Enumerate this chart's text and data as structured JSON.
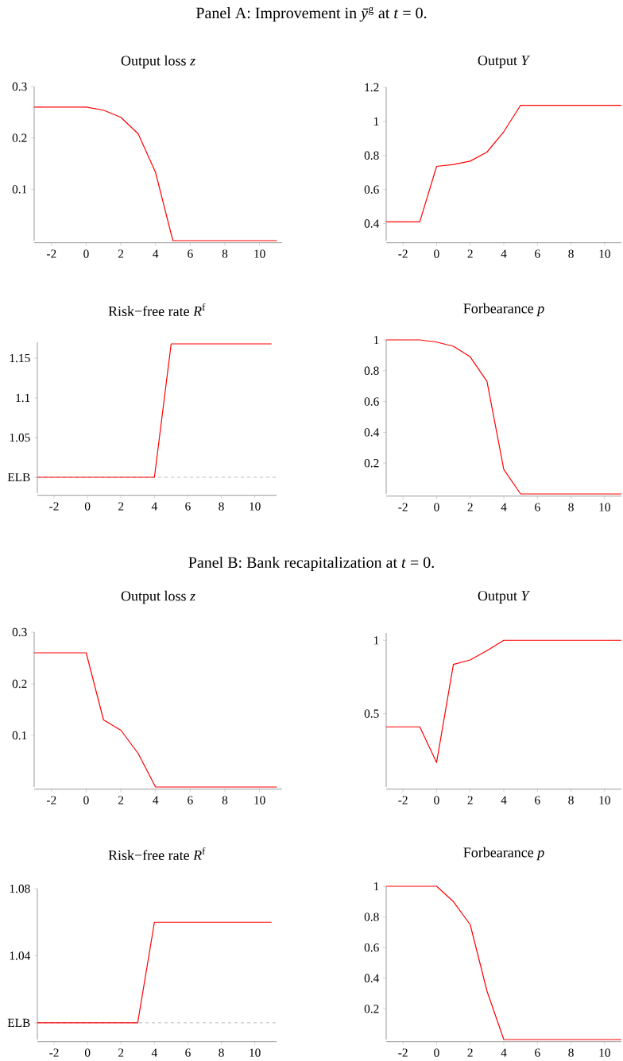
{
  "chart_data": [
    {
      "type": "line",
      "title": "Output loss *z*",
      "annotations": [
        "Panel A: Improvement in *ȳ*$^{g}$ at *t* = 0."
      ],
      "x": [
        -3,
        -2,
        -1,
        0,
        1,
        2,
        3,
        4,
        5,
        6,
        7,
        8,
        9,
        10,
        11
      ],
      "values": [
        0.26,
        0.26,
        0.26,
        0.26,
        0.254,
        0.24,
        0.208,
        0.133,
        0,
        0,
        0,
        0,
        0,
        0,
        0
      ],
      "color": "#ff0000",
      "xlim": [
        -3,
        11.3
      ],
      "xticks": [
        -2,
        0,
        2,
        4,
        6,
        8,
        10
      ],
      "ylim": [
        0,
        0.3
      ],
      "yticks": [
        0.1,
        0.2,
        0.3
      ]
    },
    {
      "type": "line",
      "title": "Output *Y*",
      "x": [
        -3,
        -2,
        -1,
        0,
        1,
        2,
        3,
        4,
        5,
        6,
        7,
        8,
        9,
        10,
        11
      ],
      "values": [
        0.41,
        0.41,
        0.41,
        0.736,
        0.747,
        0.767,
        0.82,
        0.94,
        1.095,
        1.095,
        1.095,
        1.095,
        1.095,
        1.095,
        1.095
      ],
      "color": "#ff0000",
      "xlim": [
        -3,
        11
      ],
      "xticks": [
        -2,
        0,
        2,
        4,
        6,
        8,
        10
      ],
      "ylim": [
        0.3,
        1.2
      ],
      "yticks": [
        0.4,
        0.6,
        0.8,
        1,
        1.2
      ]
    },
    {
      "type": "line",
      "title": "Risk−free rate *R*$^{f}$",
      "x": [
        -3,
        -2,
        -1,
        0,
        1,
        2,
        3,
        4,
        5,
        6,
        7,
        8,
        9,
        10,
        11
      ],
      "values": [
        1,
        1,
        1,
        1,
        1,
        1,
        1,
        1,
        1.168,
        1.168,
        1.168,
        1.168,
        1.168,
        1.168,
        1.168
      ],
      "color": "#ff0000",
      "xlim": [
        -3,
        11.3
      ],
      "xticks": [
        -2,
        0,
        2,
        4,
        6,
        8,
        10
      ],
      "ylim": [
        0.98,
        1.17
      ],
      "yticks": [
        {
          "value": 1,
          "label": "ELB"
        },
        1.05,
        1.1,
        1.15
      ],
      "ref_lines": [
        {
          "axis": "y",
          "value": 1,
          "color": "#808080",
          "line_style": "dashed"
        }
      ]
    },
    {
      "type": "line",
      "title": "Forbearance *p*",
      "x": [
        -3,
        -2,
        -1,
        0,
        1,
        2,
        3,
        4,
        5,
        6,
        7,
        8,
        9,
        10,
        11
      ],
      "values": [
        1,
        1,
        1,
        0.986,
        0.959,
        0.89,
        0.73,
        0.159,
        0,
        0,
        0,
        0,
        0,
        0,
        0
      ],
      "color": "#ff0000",
      "xlim": [
        -3,
        11
      ],
      "xticks": [
        -2,
        0,
        2,
        4,
        6,
        8,
        10
      ],
      "ylim": [
        0,
        1
      ],
      "yticks": [
        0.2,
        0.4,
        0.6,
        0.8,
        1
      ]
    },
    {
      "type": "line",
      "title": "Output loss *z*",
      "annotations": [
        "Panel B: Bank recapitalization at *t* = 0."
      ],
      "x": [
        -3,
        -2,
        -1,
        0,
        1,
        2,
        3,
        4,
        5,
        6,
        7,
        8,
        9,
        10,
        11
      ],
      "values": [
        0.26,
        0.26,
        0.26,
        0.26,
        0.13,
        0.11,
        0.065,
        0,
        0,
        0,
        0,
        0,
        0,
        0,
        0
      ],
      "color": "#ff0000",
      "xlim": [
        -3,
        11.3
      ],
      "xticks": [
        -2,
        0,
        2,
        4,
        6,
        8,
        10
      ],
      "ylim": [
        0,
        0.3
      ],
      "yticks": [
        0.1,
        0.2,
        0.3
      ]
    },
    {
      "type": "line",
      "title": "Output *Y*",
      "x": [
        -3,
        -2,
        -1,
        0,
        1,
        2,
        3,
        4,
        5,
        6,
        7,
        8,
        9,
        10,
        11
      ],
      "values": [
        0.41,
        0.41,
        0.41,
        0.167,
        0.836,
        0.866,
        0.93,
        1,
        1,
        1,
        1,
        1,
        1,
        1,
        1
      ],
      "color": "#ff0000",
      "xlim": [
        -3,
        11
      ],
      "xticks": [
        -2,
        0,
        2,
        4,
        6,
        8,
        10
      ],
      "ylim": [
        0,
        1.05
      ],
      "yticks": [
        0.5,
        1
      ]
    },
    {
      "type": "line",
      "title": "Risk−free rate *R*$^{f}$",
      "x": [
        -3,
        -2,
        -1,
        0,
        1,
        2,
        3,
        4,
        5,
        6,
        7,
        8,
        9,
        10,
        11
      ],
      "values": [
        1,
        1,
        1,
        1,
        1,
        1,
        1,
        1.06,
        1.06,
        1.06,
        1.06,
        1.06,
        1.06,
        1.06,
        1.06
      ],
      "color": "#ff0000",
      "xlim": [
        -3,
        11.3
      ],
      "xticks": [
        -2,
        0,
        2,
        4,
        6,
        8,
        10
      ],
      "ylim": [
        0.99,
        1.08
      ],
      "yticks": [
        {
          "value": 1,
          "label": "ELB"
        },
        1.04,
        1.08
      ],
      "ref_lines": [
        {
          "axis": "y",
          "value": 1,
          "color": "#808080",
          "line_style": "dashed"
        }
      ]
    },
    {
      "type": "line",
      "title": "Forbearance *p*",
      "x": [
        -3,
        -2,
        -1,
        0,
        1,
        2,
        3,
        4,
        5,
        6,
        7,
        8,
        9,
        10,
        11
      ],
      "values": [
        1,
        1,
        1,
        1,
        0.9,
        0.75,
        0.316,
        0,
        0,
        0,
        0,
        0,
        0,
        0,
        0
      ],
      "color": "#ff0000",
      "xlim": [
        -3,
        11
      ],
      "xticks": [
        -2,
        0,
        2,
        4,
        6,
        8,
        10
      ],
      "ylim": [
        0,
        1
      ],
      "yticks": [
        0.2,
        0.4,
        0.6,
        0.8,
        1
      ]
    }
  ]
}
